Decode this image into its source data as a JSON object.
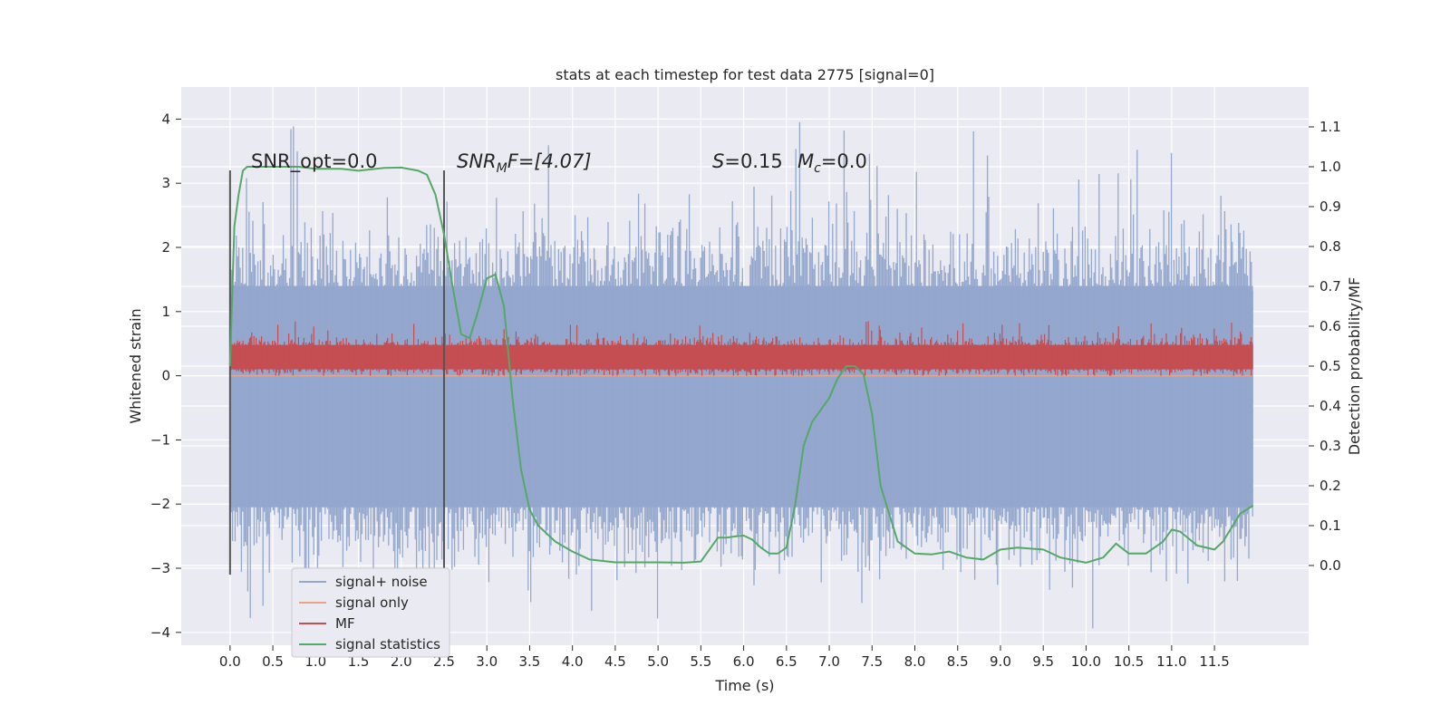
{
  "chart_data": {
    "type": "line",
    "title": "stats at each timestep for test data 2775 [signal=0]",
    "xlabel": "Time (s)",
    "ylabel": "Whitened strain",
    "ylabel_right": "Detection probability/MF",
    "xlim": [
      -0.57,
      12.6
    ],
    "ylim_left": [
      -4.2,
      4.5
    ],
    "ylim_right": [
      -0.2,
      1.2
    ],
    "x_ticks": [
      "0.0",
      "0.5",
      "1.0",
      "1.5",
      "2.0",
      "2.5",
      "3.0",
      "3.5",
      "4.0",
      "4.5",
      "5.0",
      "5.5",
      "6.0",
      "6.5",
      "7.0",
      "7.5",
      "8.0",
      "8.5",
      "9.0",
      "9.5",
      "10.0",
      "10.5",
      "11.0",
      "11.5"
    ],
    "y_left_ticks": [
      4,
      3,
      2,
      1,
      0,
      -1,
      -2,
      -3,
      -4
    ],
    "y_left_tick_labels": [
      "4",
      "3",
      "2",
      "1",
      "0",
      "−1",
      "−2",
      "−3",
      "−4"
    ],
    "y_right_ticks": [
      1.1,
      1.0,
      0.9,
      0.8,
      0.7,
      0.6,
      0.5,
      0.4,
      0.3,
      0.2,
      0.1,
      0.0
    ],
    "y_right_tick_labels": [
      "1.1",
      "1.0",
      "0.9",
      "0.8",
      "0.7",
      "0.6",
      "0.5",
      "0.4",
      "0.3",
      "0.2",
      "0.1",
      "0.0"
    ],
    "grid": true,
    "legend_position": "lower-left",
    "annotations": {
      "snr_opt": "SNR_opt=0.0",
      "snr_mf_base": "SNR",
      "snr_mf_sub": "M",
      "snr_mf_rest": "F=[4.07]",
      "s_label": "S",
      "s_value": "=0.15",
      "mc_label": "M",
      "mc_sub": "c",
      "mc_value": "=0.0"
    },
    "vertical_markers_x": [
      0.0,
      2.5
    ],
    "series": [
      {
        "name": "signal+ noise",
        "color": "#94a7cd",
        "axis": "left",
        "kind": "noise",
        "x_range": [
          0.0,
          11.95
        ],
        "amplitude_typical": [
          -2.5,
          2.0
        ],
        "amplitude_extreme": [
          -4.0,
          4.1
        ]
      },
      {
        "name": "signal only",
        "color": "#e9a487",
        "axis": "left",
        "x": [
          0.0,
          11.95
        ],
        "y": [
          0.0,
          0.0
        ]
      },
      {
        "name": "MF",
        "color": "#c44e52",
        "axis": "left",
        "kind": "band",
        "x_range": [
          0.0,
          11.95
        ],
        "amplitude_typical": [
          0.05,
          0.55
        ],
        "amplitude_extreme": [
          0.0,
          0.85
        ]
      },
      {
        "name": "signal statistics",
        "color": "#55a868",
        "axis": "right",
        "x": [
          0.0,
          0.05,
          0.1,
          0.15,
          0.2,
          0.3,
          0.5,
          0.8,
          1.0,
          1.3,
          1.5,
          1.8,
          2.0,
          2.2,
          2.3,
          2.4,
          2.5,
          2.6,
          2.7,
          2.8,
          2.9,
          3.0,
          3.1,
          3.2,
          3.3,
          3.4,
          3.5,
          3.6,
          3.7,
          3.8,
          4.0,
          4.2,
          4.5,
          5.0,
          5.3,
          5.5,
          5.6,
          5.7,
          5.8,
          5.9,
          6.0,
          6.1,
          6.2,
          6.3,
          6.4,
          6.5,
          6.6,
          6.7,
          6.8,
          6.9,
          7.0,
          7.1,
          7.2,
          7.3,
          7.4,
          7.5,
          7.6,
          7.8,
          8.0,
          8.2,
          8.4,
          8.6,
          8.8,
          9.0,
          9.2,
          9.5,
          9.7,
          10.0,
          10.2,
          10.35,
          10.5,
          10.7,
          10.9,
          11.0,
          11.1,
          11.3,
          11.5,
          11.6,
          11.8,
          11.95
        ],
        "y": [
          0.5,
          0.85,
          0.93,
          0.99,
          1.0,
          1.0,
          1.0,
          1.0,
          0.995,
          0.995,
          0.99,
          0.997,
          0.998,
          0.99,
          0.98,
          0.93,
          0.83,
          0.7,
          0.58,
          0.57,
          0.64,
          0.72,
          0.73,
          0.65,
          0.42,
          0.24,
          0.14,
          0.1,
          0.08,
          0.06,
          0.035,
          0.015,
          0.008,
          0.008,
          0.007,
          0.01,
          0.04,
          0.07,
          0.07,
          0.073,
          0.075,
          0.065,
          0.045,
          0.03,
          0.03,
          0.045,
          0.15,
          0.3,
          0.36,
          0.39,
          0.42,
          0.47,
          0.5,
          0.5,
          0.48,
          0.38,
          0.2,
          0.06,
          0.03,
          0.028,
          0.035,
          0.02,
          0.015,
          0.04,
          0.045,
          0.04,
          0.02,
          0.007,
          0.02,
          0.055,
          0.03,
          0.03,
          0.06,
          0.09,
          0.085,
          0.05,
          0.04,
          0.06,
          0.13,
          0.15
        ]
      }
    ]
  }
}
